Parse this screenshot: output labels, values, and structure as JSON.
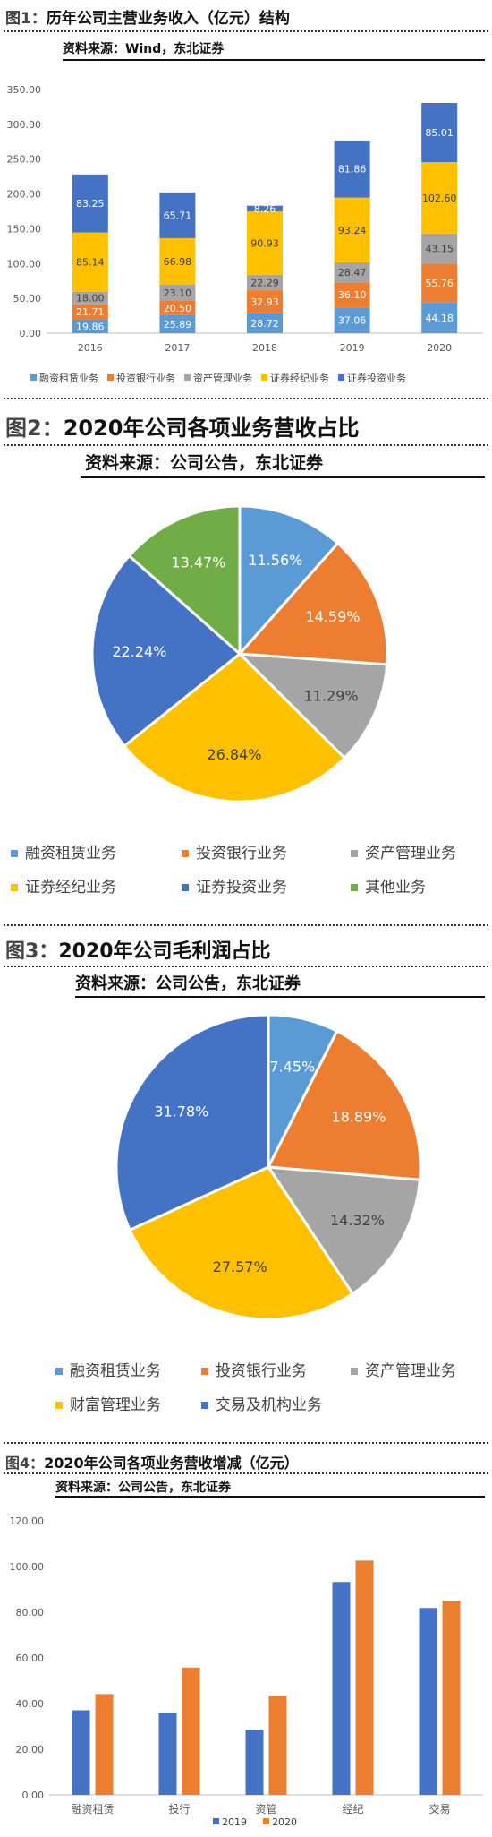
{
  "fig1": {
    "title": "历年公司主营业务收入（亿元）结构",
    "num": "图1：",
    "source": "资料来源：Wind，东北证券",
    "chart_data": {
      "type": "bar",
      "stacked": true,
      "categories": [
        "2016",
        "2017",
        "2018",
        "2019",
        "2020"
      ],
      "ylim": [
        0,
        350
      ],
      "yticks": [
        "0.00",
        "50.00",
        "100.00",
        "150.00",
        "200.00",
        "250.00",
        "300.00",
        "350.00"
      ],
      "series": [
        {
          "name": "融资租赁业务",
          "color": "#5b9bd5",
          "values": [
            19.86,
            25.89,
            28.72,
            37.06,
            44.18
          ],
          "labels": [
            "19.86",
            "25.89",
            "28.72",
            "37.06",
            "44.18"
          ]
        },
        {
          "name": "投资银行业务",
          "color": "#ed7d31",
          "values": [
            21.71,
            20.5,
            32.93,
            36.1,
            55.76
          ],
          "labels": [
            "21.71",
            "20.50",
            "32.93",
            "36.10",
            "55.76"
          ]
        },
        {
          "name": "资产管理业务",
          "color": "#a5a5a5",
          "values": [
            18.0,
            23.1,
            22.29,
            28.47,
            43.15
          ],
          "labels": [
            "18.00",
            "23.10",
            "22.29",
            "28.47",
            "43.15"
          ]
        },
        {
          "name": "证券经纪业务",
          "color": "#ffc000",
          "values": [
            85.14,
            66.98,
            90.93,
            93.24,
            102.6
          ],
          "labels": [
            "85.14",
            "66.98",
            "90.93",
            "93.24",
            "102.60"
          ]
        },
        {
          "name": "证券投资业务",
          "color": "#4472c4",
          "values": [
            83.25,
            65.71,
            8.26,
            81.86,
            85.01
          ],
          "labels": [
            "83.25",
            "65.71",
            "8.26",
            "81.86",
            "85.01"
          ]
        }
      ]
    }
  },
  "fig2": {
    "num": "图2：",
    "title": "2020年公司各项业务营收占比",
    "source": "资料来源：公司公告，东北证券",
    "chart_data": {
      "type": "pie",
      "slices": [
        {
          "name": "融资租赁业务",
          "value": 11.56,
          "label": "11.56%",
          "color": "#5b9bd5"
        },
        {
          "name": "投资银行业务",
          "value": 14.59,
          "label": "14.59%",
          "color": "#ed7d31"
        },
        {
          "name": "资产管理业务",
          "value": 11.29,
          "label": "11.29%",
          "color": "#a5a5a5"
        },
        {
          "name": "证券经纪业务",
          "value": 26.84,
          "label": "26.84%",
          "color": "#ffc000"
        },
        {
          "name": "证券投资业务",
          "value": 22.24,
          "label": "22.24%",
          "color": "#4472c4"
        },
        {
          "name": "其他业务",
          "value": 13.47,
          "label": "13.47%",
          "color": "#70ad47"
        }
      ]
    }
  },
  "fig3": {
    "num": "图3：",
    "title": "2020年公司毛利润占比",
    "source": "资料来源：公司公告，东北证券",
    "chart_data": {
      "type": "pie",
      "slices": [
        {
          "name": "融资租赁业务",
          "value": 7.45,
          "label": "7.45%",
          "color": "#5b9bd5"
        },
        {
          "name": "投资银行业务",
          "value": 18.89,
          "label": "18.89%",
          "color": "#ed7d31"
        },
        {
          "name": "资产管理业务",
          "value": 14.32,
          "label": "14.32%",
          "color": "#a5a5a5"
        },
        {
          "name": "财富管理业务",
          "value": 27.57,
          "label": "27.57%",
          "color": "#ffc000"
        },
        {
          "name": "交易及机构业务",
          "value": 31.78,
          "label": "31.78%",
          "color": "#4472c4"
        }
      ]
    }
  },
  "fig4": {
    "num": "图4：",
    "title": "2020年公司各项业务营收增减（亿元）",
    "source": "资料来源：公司公告，东北证券",
    "chart_data": {
      "type": "bar",
      "categories": [
        "融资租赁",
        "投行",
        "资管",
        "经纪",
        "交易"
      ],
      "ylim": [
        0,
        120
      ],
      "yticks": [
        "0.00",
        "20.00",
        "40.00",
        "60.00",
        "80.00",
        "100.00",
        "120.00"
      ],
      "series": [
        {
          "name": "2019",
          "color": "#4472c4",
          "values": [
            37.06,
            36.1,
            28.47,
            93.24,
            81.86
          ]
        },
        {
          "name": "2020",
          "color": "#ed7d31",
          "values": [
            44.18,
            55.76,
            43.15,
            102.6,
            85.01
          ]
        }
      ]
    }
  }
}
